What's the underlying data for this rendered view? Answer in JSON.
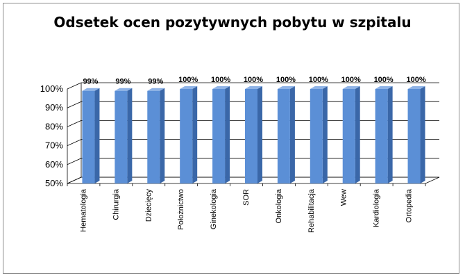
{
  "chart_data": {
    "type": "bar",
    "title": "Odsetek ocen pozytywnych pobytu w szpitalu",
    "categories": [
      "Hematologia",
      "Chirurgia",
      "Dziecięcy",
      "Położnictwo",
      "Ginekologia",
      "SOR",
      "Onkologia",
      "Rehabilitacja",
      "Wew",
      "Kardiologia",
      "Ortopedia"
    ],
    "values": [
      0.99,
      0.99,
      0.99,
      1.0,
      1.0,
      1.0,
      1.0,
      1.0,
      1.0,
      1.0,
      1.0
    ],
    "data_labels": [
      "99%",
      "99%",
      "99%",
      "100%",
      "100%",
      "100%",
      "100%",
      "100%",
      "100%",
      "100%",
      "100%"
    ],
    "ylim": [
      0.5,
      1.0
    ],
    "yticks": [
      "50%",
      "60%",
      "70%",
      "80%",
      "90%",
      "100%"
    ],
    "grid": true,
    "three_d": true,
    "colors": {
      "bar_front": "#5b8fd6",
      "bar_side": "#3a67a8",
      "bar_top": "#8fb3e6",
      "grid": "#000000"
    }
  }
}
